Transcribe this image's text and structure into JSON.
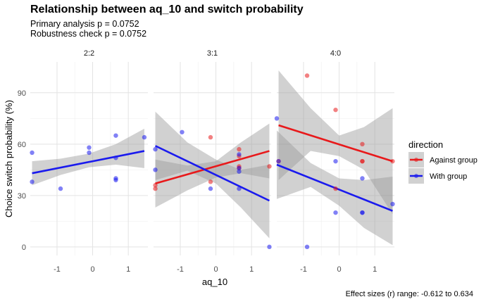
{
  "chart_data": {
    "type": "scatter",
    "title": "Relationship between aq_10 and switch probability",
    "subtitle_lines": [
      "Primary analysis p = 0.0752",
      "Robustness check p = 0.0752"
    ],
    "caption": "Effect sizes (r) range: -0.612 to 0.634",
    "xlabel": "aq_10",
    "ylabel": "Choice switch probability (%)",
    "xlim": [
      -1.75,
      1.55
    ],
    "ylim": [
      -5,
      108
    ],
    "xticks": [
      -1,
      0,
      1
    ],
    "yticks": [
      0,
      30,
      60,
      90
    ],
    "grid": true,
    "legend": {
      "title": "direction",
      "position": "right",
      "entries": [
        {
          "name": "Against group",
          "color": "#e8191b"
        },
        {
          "name": "With group",
          "color": "#1a1aee"
        }
      ]
    },
    "colors": {
      "Against group": "#e8191b",
      "With group": "#1a1aee",
      "ribbon": "#999999"
    },
    "panels": [
      {
        "label": "2:2",
        "series": [
          {
            "name": "With group",
            "points": [
              [
                -1.7,
                55
              ],
              [
                -1.7,
                38
              ],
              [
                -0.9,
                34
              ],
              [
                -0.1,
                58
              ],
              [
                -0.1,
                55
              ],
              [
                0.65,
                65
              ],
              [
                0.65,
                52
              ],
              [
                0.65,
                40
              ],
              [
                0.65,
                39
              ],
              [
                1.45,
                64
              ]
            ],
            "fit": [
              [
                -1.7,
                43
              ],
              [
                1.45,
                56
              ]
            ],
            "band_upper": [
              [
                -1.7,
                50
              ],
              [
                -0.9,
                51.5
              ],
              [
                -0.1,
                54.5
              ],
              [
                0.65,
                60
              ],
              [
                1.45,
                69
              ]
            ],
            "band_lower": [
              [
                -1.7,
                36
              ],
              [
                -0.9,
                42
              ],
              [
                -0.1,
                46.5
              ],
              [
                0.65,
                48
              ],
              [
                1.45,
                46
              ]
            ]
          }
        ]
      },
      {
        "label": "3:1",
        "series": [
          {
            "name": "Against group",
            "points": [
              [
                -1.7,
                36
              ],
              [
                -1.7,
                34
              ],
              [
                -0.15,
                64
              ],
              [
                -0.15,
                38
              ],
              [
                0.65,
                57
              ],
              [
                0.65,
                53
              ],
              [
                0.65,
                47
              ],
              [
                0.65,
                46
              ],
              [
                1.5,
                47
              ]
            ],
            "fit": [
              [
                -1.7,
                37
              ],
              [
                1.5,
                56
              ]
            ],
            "band_upper": [
              [
                -1.7,
                51
              ],
              [
                -0.8,
                47.5
              ],
              [
                0.0,
                50
              ],
              [
                0.7,
                61
              ],
              [
                1.5,
                72
              ]
            ],
            "band_lower": [
              [
                -1.7,
                23
              ],
              [
                -0.8,
                33
              ],
              [
                0.0,
                40.5
              ],
              [
                0.7,
                43
              ],
              [
                1.5,
                40
              ]
            ]
          },
          {
            "name": "With group",
            "points": [
              [
                -1.7,
                57
              ],
              [
                -1.7,
                45
              ],
              [
                -0.95,
                67
              ],
              [
                -0.15,
                34
              ],
              [
                0.65,
                54
              ],
              [
                0.65,
                46
              ],
              [
                0.65,
                44
              ],
              [
                0.65,
                34
              ],
              [
                1.5,
                0
              ]
            ],
            "fit": [
              [
                -1.7,
                59
              ],
              [
                1.5,
                27
              ]
            ],
            "band_upper": [
              [
                -1.7,
                79
              ],
              [
                -0.8,
                61
              ],
              [
                0.0,
                51
              ],
              [
                0.7,
                45
              ],
              [
                1.5,
                48
              ]
            ],
            "band_lower": [
              [
                -1.7,
                39
              ],
              [
                -0.8,
                44.5
              ],
              [
                0.0,
                37
              ],
              [
                0.7,
                23
              ],
              [
                1.5,
                5
              ]
            ]
          }
        ]
      },
      {
        "label": "4:0",
        "series": [
          {
            "name": "Against group",
            "points": [
              [
                -1.7,
                50
              ],
              [
                -0.9,
                100
              ],
              [
                -0.1,
                80
              ],
              [
                -0.1,
                34
              ],
              [
                0.65,
                60
              ],
              [
                0.65,
                50
              ],
              [
                0.65,
                50
              ],
              [
                1.5,
                50
              ]
            ],
            "fit": [
              [
                -1.7,
                71
              ],
              [
                1.5,
                50
              ]
            ],
            "band_upper": [
              [
                -1.7,
                103
              ],
              [
                -0.8,
                81
              ],
              [
                0.0,
                65
              ],
              [
                0.7,
                70
              ],
              [
                1.5,
                81
              ]
            ],
            "band_lower": [
              [
                -1.7,
                39
              ],
              [
                -0.8,
                56
              ],
              [
                0.0,
                53
              ],
              [
                0.7,
                45
              ],
              [
                1.5,
                19
              ]
            ]
          },
          {
            "name": "With group",
            "points": [
              [
                -1.75,
                75
              ],
              [
                -1.7,
                50
              ],
              [
                -0.9,
                0
              ],
              [
                -0.1,
                50
              ],
              [
                -0.1,
                20
              ],
              [
                0.65,
                40
              ],
              [
                0.65,
                20
              ],
              [
                0.65,
                20
              ],
              [
                1.5,
                25
              ]
            ],
            "fit": [
              [
                -1.75,
                48
              ],
              [
                1.5,
                21
              ]
            ],
            "band_upper": [
              [
                -1.75,
                68
              ],
              [
                -0.8,
                49
              ],
              [
                0.0,
                40
              ],
              [
                0.7,
                39
              ],
              [
                1.5,
                41
              ]
            ],
            "band_lower": [
              [
                -1.75,
                28
              ],
              [
                -0.8,
                35
              ],
              [
                0.0,
                24
              ],
              [
                0.7,
                11
              ],
              [
                1.5,
                1
              ]
            ]
          }
        ]
      }
    ]
  }
}
